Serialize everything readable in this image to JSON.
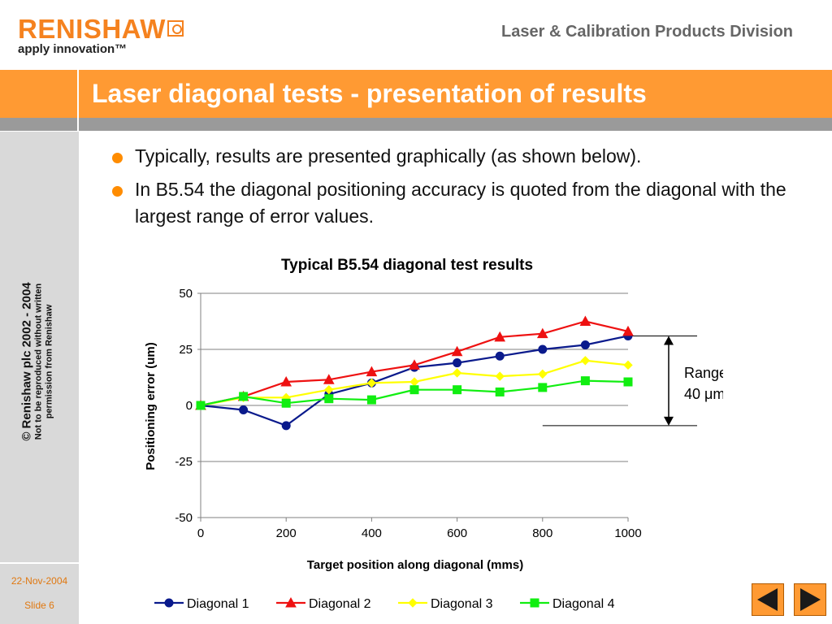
{
  "header": {
    "logo_text": "RENISHAW",
    "logo_tagline": "apply innovation™",
    "division": "Laser & Calibration Products Division"
  },
  "title": "Laser diagonal tests - presentation of results",
  "sidebar": {
    "copyright_main": "© Renishaw plc 2002 - 2004",
    "copyright_line1": "Not to be reproduced without written",
    "copyright_line2": "permission from Renishaw",
    "date": "22-Nov-2004",
    "slide": "Slide 6"
  },
  "bullets": [
    "Typically, results are presented graphically (as shown below).",
    "In B5.54 the diagonal positioning accuracy is quoted from the diagonal with the largest range of error values."
  ],
  "colors": {
    "accent": "#ff9a33",
    "grey_strip": "#9a9a9a",
    "sidebar": "#d9d9d9"
  },
  "nav": {
    "prev_icon": "triangle-left-icon",
    "next_icon": "triangle-right-icon"
  },
  "chart_data": {
    "type": "line",
    "title": "Typical B5.54 diagonal test results",
    "xlabel": "Target position along diagonal (mms)",
    "ylabel": "Positioning error (um)",
    "xlim": [
      0,
      1000
    ],
    "ylim": [
      -50,
      50
    ],
    "xticks": [
      0,
      200,
      400,
      600,
      800,
      1000
    ],
    "yticks": [
      -50,
      -25,
      0,
      25,
      50
    ],
    "grid": "horizontal",
    "legend": "bottom",
    "x": [
      0,
      100,
      200,
      300,
      400,
      500,
      600,
      700,
      800,
      900,
      1000
    ],
    "series": [
      {
        "name": "Diagonal 1",
        "color": "#0a1a8c",
        "marker": "circle",
        "values": [
          0,
          -2,
          -9,
          5,
          10,
          17,
          19,
          22,
          25,
          27,
          31
        ]
      },
      {
        "name": "Diagonal 2",
        "color": "#ee1111",
        "marker": "triangle",
        "values": [
          0,
          4,
          10.5,
          11.5,
          15,
          18,
          24,
          30.5,
          32,
          37.5,
          33
        ]
      },
      {
        "name": "Diagonal 3",
        "color": "#ffff00",
        "marker": "diamond",
        "values": [
          0,
          3.5,
          3.5,
          7,
          10,
          10.5,
          14.5,
          13,
          14,
          20,
          18
        ]
      },
      {
        "name": "Diagonal 4",
        "color": "#11ee11",
        "marker": "square",
        "values": [
          0,
          4,
          1,
          3,
          2.5,
          7,
          7,
          6,
          8,
          11,
          10.5
        ]
      }
    ],
    "annotation": {
      "label_line1": "Range",
      "label_line2": "40 μm",
      "upper": 31,
      "lower": -9
    }
  }
}
